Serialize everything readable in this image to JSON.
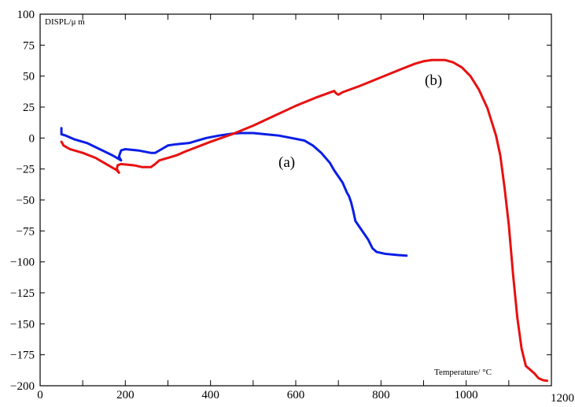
{
  "chart_data": {
    "type": "line",
    "ylabel": "DISPL/μ m",
    "xlabel": "Temperature/ °C",
    "xlim": [
      0,
      1200
    ],
    "ylim": [
      -200,
      100
    ],
    "x_tick_labels": [
      "0",
      "200",
      "400",
      "600",
      "800",
      "1000",
      "1200"
    ],
    "y_tick_labels": [
      "100",
      "75",
      "50",
      "25",
      "0",
      "−25",
      "−50",
      "−75",
      "−100",
      "−125",
      "−150",
      "−175",
      "−200"
    ],
    "grid": false,
    "annotations": [
      "(a)",
      "(b)"
    ],
    "series": [
      {
        "label": "(a)",
        "color": "#0a1ee6",
        "points": [
          [
            50,
            8
          ],
          [
            50,
            3
          ],
          [
            60,
            2
          ],
          [
            80,
            -1
          ],
          [
            110,
            -4
          ],
          [
            140,
            -9
          ],
          [
            170,
            -14
          ],
          [
            190,
            -18
          ],
          [
            185,
            -15
          ],
          [
            190,
            -10
          ],
          [
            200,
            -9
          ],
          [
            230,
            -10
          ],
          [
            260,
            -12
          ],
          [
            270,
            -12
          ],
          [
            285,
            -9
          ],
          [
            300,
            -6
          ],
          [
            320,
            -5
          ],
          [
            350,
            -4
          ],
          [
            370,
            -2
          ],
          [
            390,
            0
          ],
          [
            420,
            2
          ],
          [
            450,
            3.5
          ],
          [
            470,
            4
          ],
          [
            500,
            4
          ],
          [
            530,
            3
          ],
          [
            560,
            2
          ],
          [
            590,
            0
          ],
          [
            620,
            -2
          ],
          [
            640,
            -6
          ],
          [
            660,
            -12
          ],
          [
            680,
            -20
          ],
          [
            690,
            -26
          ],
          [
            700,
            -31
          ],
          [
            710,
            -36
          ],
          [
            720,
            -44
          ],
          [
            725,
            -47
          ],
          [
            730,
            -52
          ],
          [
            735,
            -59
          ],
          [
            740,
            -67
          ],
          [
            750,
            -72
          ],
          [
            760,
            -77
          ],
          [
            770,
            -82
          ],
          [
            780,
            -89
          ],
          [
            790,
            -92
          ],
          [
            810,
            -93.5
          ],
          [
            840,
            -94.5
          ],
          [
            860,
            -95
          ]
        ]
      },
      {
        "label": "(b)",
        "color": "#e81010",
        "points": [
          [
            50,
            -3
          ],
          [
            55,
            -6
          ],
          [
            70,
            -9
          ],
          [
            100,
            -12
          ],
          [
            130,
            -16
          ],
          [
            160,
            -22
          ],
          [
            180,
            -26
          ],
          [
            185,
            -28
          ],
          [
            180,
            -25
          ],
          [
            182,
            -22
          ],
          [
            190,
            -21
          ],
          [
            220,
            -22
          ],
          [
            240,
            -23.5
          ],
          [
            260,
            -23.5
          ],
          [
            270,
            -21
          ],
          [
            280,
            -18
          ],
          [
            300,
            -16
          ],
          [
            320,
            -14
          ],
          [
            340,
            -11
          ],
          [
            370,
            -7
          ],
          [
            400,
            -3
          ],
          [
            450,
            3
          ],
          [
            500,
            10
          ],
          [
            550,
            18
          ],
          [
            600,
            26
          ],
          [
            650,
            33
          ],
          [
            690,
            38
          ],
          [
            695,
            36
          ],
          [
            700,
            35
          ],
          [
            710,
            37
          ],
          [
            750,
            42
          ],
          [
            800,
            49
          ],
          [
            850,
            56
          ],
          [
            880,
            60
          ],
          [
            900,
            62
          ],
          [
            920,
            63
          ],
          [
            950,
            63
          ],
          [
            970,
            61
          ],
          [
            990,
            57
          ],
          [
            1010,
            50
          ],
          [
            1030,
            39
          ],
          [
            1050,
            24
          ],
          [
            1070,
            2
          ],
          [
            1080,
            -14
          ],
          [
            1090,
            -40
          ],
          [
            1100,
            -70
          ],
          [
            1110,
            -110
          ],
          [
            1120,
            -145
          ],
          [
            1130,
            -170
          ],
          [
            1140,
            -184
          ],
          [
            1150,
            -187
          ],
          [
            1160,
            -190
          ],
          [
            1170,
            -194
          ],
          [
            1180,
            -195.5
          ],
          [
            1190,
            -196
          ]
        ]
      }
    ]
  }
}
